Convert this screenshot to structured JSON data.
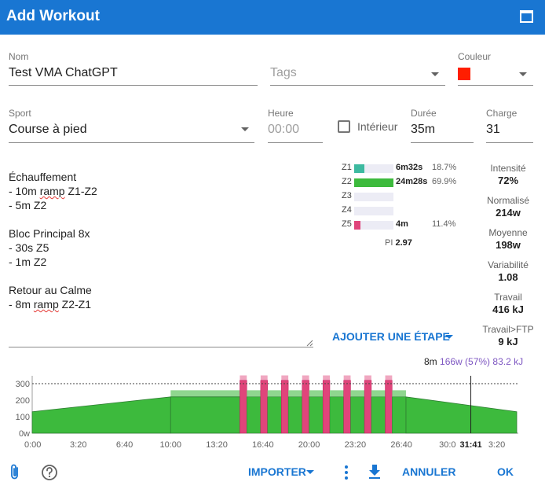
{
  "dialog": {
    "title": "Add Workout"
  },
  "form": {
    "name": {
      "label": "Nom",
      "value": "Test VMA ChatGPT"
    },
    "tags": {
      "placeholder": "Tags"
    },
    "color": {
      "label": "Couleur",
      "value": "#ff1e00"
    },
    "sport": {
      "label": "Sport",
      "value": "Course à pied"
    },
    "time": {
      "label": "Heure",
      "placeholder": "00:00"
    },
    "indoor": {
      "label": "Intérieur",
      "checked": false
    },
    "duration": {
      "label": "Durée",
      "value": "35m"
    },
    "load": {
      "label": "Charge",
      "value": "31"
    }
  },
  "description": {
    "lines": [
      {
        "text": "Échauffement"
      },
      {
        "text": "- 10m ",
        "misspelled": "ramp",
        "rest": " Z1-Z2"
      },
      {
        "text": "- 5m Z2"
      },
      {
        "text": ""
      },
      {
        "text": "Bloc Principal 8x"
      },
      {
        "text": "- 30s Z5"
      },
      {
        "text": "- 1m Z2"
      },
      {
        "text": ""
      },
      {
        "text": "Retour au Calme"
      },
      {
        "text": "- 8m ",
        "misspelled": "ramp",
        "rest": " Z2-Z1"
      }
    ]
  },
  "zones": [
    {
      "label": "Z1",
      "time": "6m32s",
      "pct": "18.7%",
      "fraction": 0.187,
      "color": "#3dbaa0"
    },
    {
      "label": "Z2",
      "time": "24m28s",
      "pct": "69.9%",
      "fraction": 0.699,
      "color": "#3dba3d"
    },
    {
      "label": "Z3",
      "time": "",
      "pct": "",
      "fraction": 0,
      "color": "#f2c744"
    },
    {
      "label": "Z4",
      "time": "",
      "pct": "",
      "fraction": 0,
      "color": "#f29b44"
    },
    {
      "label": "Z5",
      "time": "4m",
      "pct": "11.4%",
      "fraction": 0.114,
      "color": "#e0457b"
    }
  ],
  "pi": {
    "label": "PI",
    "value": "2.97"
  },
  "stats": [
    {
      "label": "Intensité",
      "value": "72%"
    },
    {
      "label": "Normalisé",
      "value": "214w"
    },
    {
      "label": "Moyenne",
      "value": "198w"
    },
    {
      "label": "Variabilité",
      "value": "1.08"
    },
    {
      "label": "Travail",
      "value": "416 kJ"
    },
    {
      "label": "Travail>FTP",
      "value": "9 kJ"
    }
  ],
  "add_step": {
    "label": "AJOUTER UNE ÉTAPE"
  },
  "cursor": {
    "duration": "8m",
    "power": "166w",
    "pct": "(57%)",
    "work": "83.2 kJ",
    "time_label": "31:41"
  },
  "chart_data": {
    "type": "area",
    "x_unit": "elapsed time (m:ss)",
    "y_unit": "w",
    "ylim": [
      0,
      350
    ],
    "ftp_line": 300,
    "yticks": [
      300,
      200,
      100,
      0
    ],
    "ytick_labels": [
      "300",
      "200",
      "100",
      "0w"
    ],
    "xtick_labels": [
      "0:00",
      "3:20",
      "6:40",
      "10:00",
      "13:20",
      "16:40",
      "20:00",
      "23:20",
      "26:40",
      "30:0"
    ],
    "xlim_seconds": [
      0,
      2100
    ],
    "cursor_seconds": 1901,
    "steps": [
      {
        "name": "10m ramp Z1-Z2",
        "start": 0,
        "end": 600,
        "from": 130,
        "to": 220
      },
      {
        "name": "5m Z2",
        "start": 600,
        "end": 900,
        "from": 220,
        "to": 220
      },
      {
        "name": "8x 30s Z5 / 1m Z2",
        "start": 900,
        "end": 1620,
        "repeat": 8,
        "on_seconds": 30,
        "off_seconds": 60,
        "on_power": 320,
        "off_power": 220
      },
      {
        "name": "8m ramp Z2-Z1",
        "start": 1620,
        "end": 2100,
        "from": 220,
        "to": 130
      }
    ],
    "colors": {
      "z2": "#3dba3d",
      "z2_light": "#8fd68f",
      "z5": "#e0457b",
      "z5_light": "#f0a7c0"
    }
  },
  "footer": {
    "import": "IMPORTER",
    "cancel": "ANNULER",
    "ok": "OK"
  }
}
